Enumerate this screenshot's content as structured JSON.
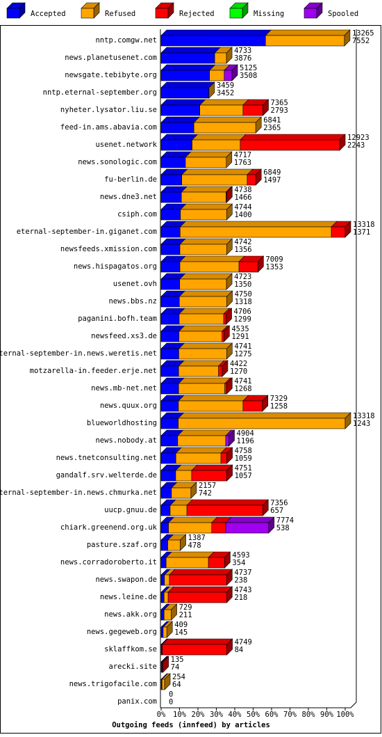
{
  "chart_data": {
    "type": "bar3d",
    "title": "Outgoing feeds (innfeed) by articles",
    "categories": [
      "nntp.comgw.net",
      "news.planetusenet.com",
      "newsgate.tebibyte.org",
      "nntp.eternal-september.org",
      "nyheter.lysator.liu.se",
      "feed-in.ams.abavia.com",
      "usenet.network",
      "news.sonologic.com",
      "fu-berlin.de",
      "news.dne3.net",
      "csiph.com",
      "eternal-september-in.giganet.com",
      "newsfeeds.xmission.com",
      "news.hispagatos.org",
      "usenet.ovh",
      "news.bbs.nz",
      "paganini.bofh.team",
      "newsfeed.xs3.de",
      "eternal-september-in.news.weretis.net",
      "motzarella-in.feeder.erje.net",
      "news.mb-net.net",
      "news.quux.org",
      "blueworldhosting",
      "news.nobody.at",
      "news.tnetconsulting.net",
      "gandalf.srv.welterde.de",
      "eternal-september-in.news.chmurka.net",
      "uucp.gnuu.de",
      "chiark.greenend.org.uk",
      "pasture.szaf.org",
      "news.corradoroberto.it",
      "news.swapon.de",
      "news.leine.de",
      "news.akk.org",
      "news.gegeweb.org",
      "sklaffkom.se",
      "arecki.site",
      "news.trigofacile.com",
      "panix.com"
    ],
    "totals": [
      13265,
      4733,
      5125,
      3459,
      7365,
      6841,
      12923,
      4717,
      6849,
      4738,
      4744,
      13318,
      4742,
      7009,
      4723,
      4750,
      4706,
      4535,
      4741,
      4422,
      4741,
      7329,
      13318,
      4904,
      4758,
      4751,
      2157,
      7356,
      7774,
      1387,
      4593,
      4737,
      4743,
      729,
      409,
      4749,
      135,
      254,
      0
    ],
    "accepted": [
      7552,
      3876,
      3508,
      3452,
      2793,
      2365,
      2243,
      1763,
      1497,
      1466,
      1400,
      1371,
      1356,
      1353,
      1350,
      1318,
      1299,
      1291,
      1275,
      1270,
      1268,
      1258,
      1243,
      1196,
      1059,
      1057,
      742,
      657,
      538,
      478,
      354,
      238,
      218,
      211,
      145,
      84,
      74,
      64,
      0
    ],
    "series": [
      {
        "name": "Accepted",
        "color": "#0000ff",
        "values": [
          56.7,
          29.1,
          26.3,
          25.9,
          21.0,
          17.8,
          16.8,
          13.2,
          11.2,
          11.0,
          10.5,
          10.3,
          10.2,
          10.2,
          10.1,
          9.9,
          9.8,
          9.7,
          9.6,
          9.5,
          9.5,
          9.4,
          9.3,
          9.0,
          8.0,
          7.9,
          5.6,
          4.9,
          4.0,
          3.6,
          2.7,
          1.8,
          1.6,
          1.6,
          1.1,
          0.6,
          0.6,
          0.5,
          0
        ]
      },
      {
        "name": "Refused",
        "color": "#ffa500",
        "values": [
          42.9,
          6.4,
          8.0,
          0.1,
          23.5,
          33.6,
          26.2,
          22.2,
          35.6,
          24.3,
          25.1,
          82.2,
          25.4,
          32.1,
          25.4,
          25.8,
          24.2,
          23.4,
          26.0,
          21.7,
          25.1,
          35.1,
          90.7,
          26.1,
          24.5,
          8.7,
          10.6,
          9.1,
          23.5,
          6.8,
          23.0,
          2.7,
          2.2,
          3.9,
          2.0,
          0,
          0,
          1.4,
          0
        ]
      },
      {
        "name": "Rejected",
        "color": "#ff0000",
        "values": [
          0,
          0,
          0,
          0,
          10.8,
          0,
          54.0,
          0,
          4.6,
          0.3,
          0,
          7.5,
          0,
          10.3,
          0,
          0,
          1.3,
          1.0,
          0,
          2.0,
          1.0,
          10.5,
          0,
          0,
          3.2,
          19.1,
          0,
          41.2,
          7.6,
          0,
          8.8,
          31.1,
          31.8,
          0,
          0,
          35.1,
          0.4,
          0,
          0
        ]
      },
      {
        "name": "Missing",
        "color": "#00ff00",
        "values": [
          0,
          0,
          0,
          0,
          0,
          0,
          0,
          0,
          0,
          0,
          0,
          0,
          0,
          0,
          0,
          0,
          0,
          0,
          0,
          0,
          0,
          0,
          0,
          0,
          0,
          0,
          0,
          0,
          0,
          0,
          0,
          0,
          0,
          0,
          0,
          0,
          0,
          0,
          0
        ]
      },
      {
        "name": "Spooled",
        "color": "#9f00ef",
        "values": [
          0,
          0,
          4.2,
          0,
          0,
          0,
          0,
          0,
          0,
          0,
          0,
          0,
          0,
          0,
          0,
          0,
          0,
          0,
          0,
          0,
          0,
          0,
          0,
          1.7,
          0,
          0,
          0,
          0,
          23.3,
          0,
          0,
          0,
          0,
          0,
          0,
          0,
          0,
          0,
          0
        ]
      }
    ],
    "xlim": [
      0,
      100
    ],
    "xticks": [
      {
        "value": 0,
        "label": "0%"
      },
      {
        "value": 10,
        "label": "10%"
      },
      {
        "value": 20,
        "label": "20%"
      },
      {
        "value": 30,
        "label": "30%"
      },
      {
        "value": 40,
        "label": "40%"
      },
      {
        "value": 50,
        "label": "50%"
      },
      {
        "value": 60,
        "label": "60%"
      },
      {
        "value": 70,
        "label": "70%"
      },
      {
        "value": 80,
        "label": "80%"
      },
      {
        "value": 90,
        "label": "90%"
      },
      {
        "value": 100,
        "label": "100%"
      }
    ]
  }
}
